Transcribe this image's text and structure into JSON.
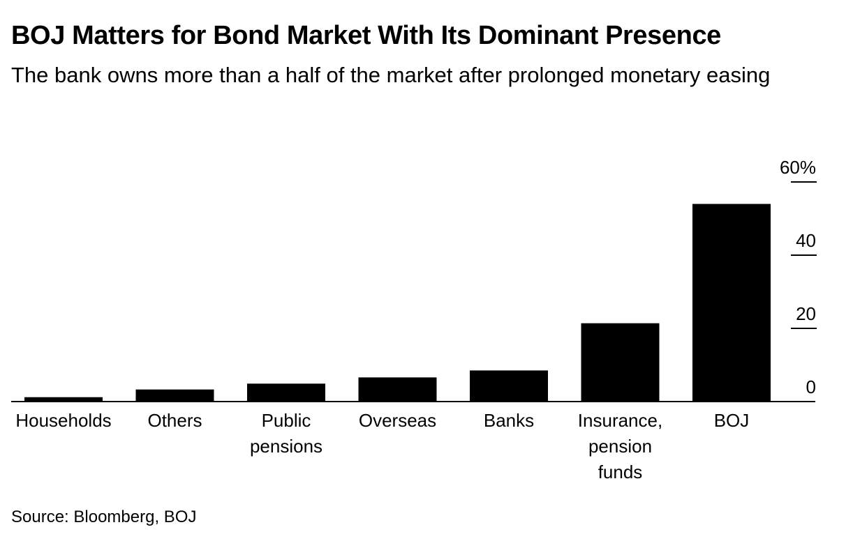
{
  "title": "BOJ Matters for Bond Market With Its Dominant Presence",
  "subtitle": "The bank owns more than a half of the market after prolonged monetary easing",
  "source": "Source: Bloomberg, BOJ",
  "colors": {
    "bar": "#000000",
    "axis": "#000000",
    "background": "#ffffff"
  },
  "chart_data": {
    "type": "bar",
    "title": "BOJ Matters for Bond Market With Its Dominant Presence",
    "subtitle": "The bank owns more than a half of the market after prolonged monetary easing",
    "categories": [
      [
        "Households"
      ],
      [
        "Others"
      ],
      [
        "Public",
        "pensions"
      ],
      [
        "Overseas"
      ],
      [
        "Banks"
      ],
      [
        "Insurance,",
        "pension",
        "funds"
      ],
      [
        "BOJ"
      ]
    ],
    "values": [
      1.2,
      3.3,
      4.9,
      6.6,
      8.5,
      21.4,
      54.0
    ],
    "unit": "%",
    "ylim": [
      0,
      60
    ],
    "yticks": [
      0,
      20,
      40,
      60
    ],
    "ytick_labels": [
      "0",
      "20",
      "40",
      "60%"
    ],
    "y_axis_side": "right",
    "xlabel": "",
    "ylabel": "",
    "grid": false,
    "legend": "none"
  }
}
